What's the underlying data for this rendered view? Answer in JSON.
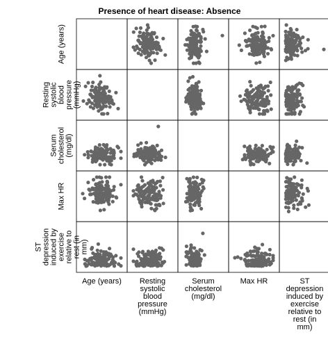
{
  "chart_data": {
    "type": "scatter-matrix",
    "title": "Presence of heart disease: Absence",
    "variables": [
      "Age (years)",
      "Resting systolic blood pressure (mmHg)",
      "Serum cholesterol (mg/dl)",
      "Max HR",
      "ST depression induced by exercise relative to rest (in mm)"
    ],
    "row_labels": [
      "Age (years)",
      "Resting\nsystolic\nblood\npressure\n(mmHg)",
      "Serum\ncholesterol\n(mg/dl)",
      "Max HR",
      "ST\ndepression\ninduced by\nexercise\nrelative to\nrest (in\nmm)"
    ],
    "col_labels": [
      "Age (years)",
      "Resting\nsystolic\nblood\npressure\n(mmHg)",
      "Serum\ncholesterol\n(mg/dl)",
      "Max HR",
      "ST\ndepression\ninduced by\nexercise\nrelative to\nrest (in\nmm)"
    ],
    "ranges": [
      [
        29,
        76
      ],
      [
        94,
        180
      ],
      [
        126,
        564
      ],
      [
        96,
        202
      ],
      [
        0,
        4.2
      ]
    ],
    "diagonal": "empty",
    "point_color": "#666666",
    "grid": false,
    "clusters": [
      {
        "mean": 52,
        "sd": 9
      },
      {
        "mean": 129,
        "sd": 16
      },
      {
        "mean": 242,
        "sd": 45
      },
      {
        "mean": 158,
        "sd": 19
      },
      {
        "mean": 0.6,
        "sd": 0.75
      }
    ],
    "outliers": [
      {
        "x": 2,
        "y": 0,
        "value": [
          63,
          150,
          564,
          154,
          1.0
        ]
      },
      {
        "x": 4,
        "y": 0,
        "value": [
          46,
          136,
          226,
          145,
          4.2
        ]
      },
      {
        "x": 1,
        "y": 2,
        "value": [
          63,
          150,
          564,
          154,
          1.0
        ]
      },
      {
        "x": 4,
        "y": 2,
        "value": [
          62,
          140,
          394,
          157,
          1.2
        ]
      },
      {
        "x": 2,
        "y": 4,
        "value": [
          58,
          120,
          340,
          172,
          3.6
        ]
      }
    ]
  }
}
